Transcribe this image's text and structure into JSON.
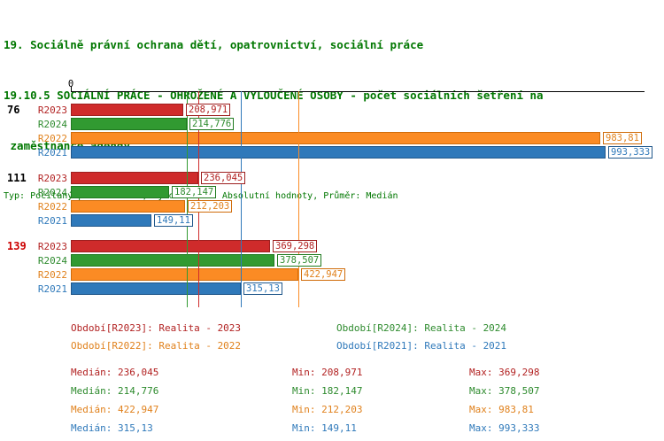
{
  "title": {
    "line1": "19. Sociálně právní ochrana dětí, opatrovnictví, sociální práce",
    "line2": "19.10.5 SOCIÁLNÍ PRÁCE - OHROŽENÉ A VYLOUČENÉ OSOBY - počet sociálních šetření na",
    "line3": " zaměstnance agendy",
    "subtitle": "Typ: Počítaný podle vzorce, Vyhodnocení: Absolutní hodnoty, Průměr: Medián"
  },
  "axis": {
    "origin_label": "0"
  },
  "series_colors": {
    "R2023": {
      "bar": "#cf2b2b",
      "border": "#9e1f1f",
      "text": "#b22222"
    },
    "R2024": {
      "bar": "#319a31",
      "border": "#1f7a1f",
      "text": "#2e8b2e"
    },
    "R2022": {
      "bar": "#fb8b24",
      "border": "#d06c0a",
      "text": "#e0811c"
    },
    "R2021": {
      "bar": "#2f79ba",
      "border": "#20578b",
      "text": "#2f79ba"
    }
  },
  "chart_data": {
    "type": "bar",
    "orientation": "horizontal",
    "x_axis": {
      "origin": 0,
      "origin_label": "0"
    },
    "groups": [
      {
        "label": "76",
        "label_color": "#000000",
        "bars": [
          {
            "series": "R2023",
            "value": 208.971,
            "value_label": "208,971"
          },
          {
            "series": "R2024",
            "value": 214.776,
            "value_label": "214,776"
          },
          {
            "series": "R2022",
            "value": 983.81,
            "value_label": "983,81"
          },
          {
            "series": "R2021",
            "value": 993.333,
            "value_label": "993,333"
          }
        ]
      },
      {
        "label": "111",
        "label_color": "#000000",
        "bars": [
          {
            "series": "R2023",
            "value": 236.045,
            "value_label": "236,045"
          },
          {
            "series": "R2024",
            "value": 182.147,
            "value_label": "182,147"
          },
          {
            "series": "R2022",
            "value": 212.203,
            "value_label": "212,203"
          },
          {
            "series": "R2021",
            "value": 149.11,
            "value_label": "149,11"
          }
        ]
      },
      {
        "label": "139",
        "label_color": "#cc0000",
        "bars": [
          {
            "series": "R2023",
            "value": 369.298,
            "value_label": "369,298"
          },
          {
            "series": "R2024",
            "value": 378.507,
            "value_label": "378,507"
          },
          {
            "series": "R2022",
            "value": 422.947,
            "value_label": "422,947"
          },
          {
            "series": "R2021",
            "value": 315.13,
            "value_label": "315,13"
          }
        ]
      }
    ],
    "median_lines": [
      {
        "series": "R2023",
        "value": 236.045
      },
      {
        "series": "R2024",
        "value": 214.776
      },
      {
        "series": "R2022",
        "value": 422.947
      },
      {
        "series": "R2021",
        "value": 315.13
      }
    ]
  },
  "legend": [
    {
      "series": "R2023",
      "label": "Období[R2023]: Realita - 2023"
    },
    {
      "series": "R2024",
      "label": "Období[R2024]: Realita - 2024"
    },
    {
      "series": "R2022",
      "label": "Období[R2022]: Realita - 2022"
    },
    {
      "series": "R2021",
      "label": "Období[R2021]: Realita - 2021"
    }
  ],
  "stats": [
    {
      "series": "R2023",
      "median": "Medián: 236,045",
      "min": "Min: 208,971",
      "max": "Max: 369,298"
    },
    {
      "series": "R2024",
      "median": "Medián: 214,776",
      "min": "Min: 182,147",
      "max": "Max: 378,507"
    },
    {
      "series": "R2022",
      "median": "Medián: 422,947",
      "min": "Min: 212,203",
      "max": "Max: 983,81"
    },
    {
      "series": "R2021",
      "median": "Medián: 315,13",
      "min": "Min: 149,11",
      "max": "Max: 993,333"
    }
  ]
}
